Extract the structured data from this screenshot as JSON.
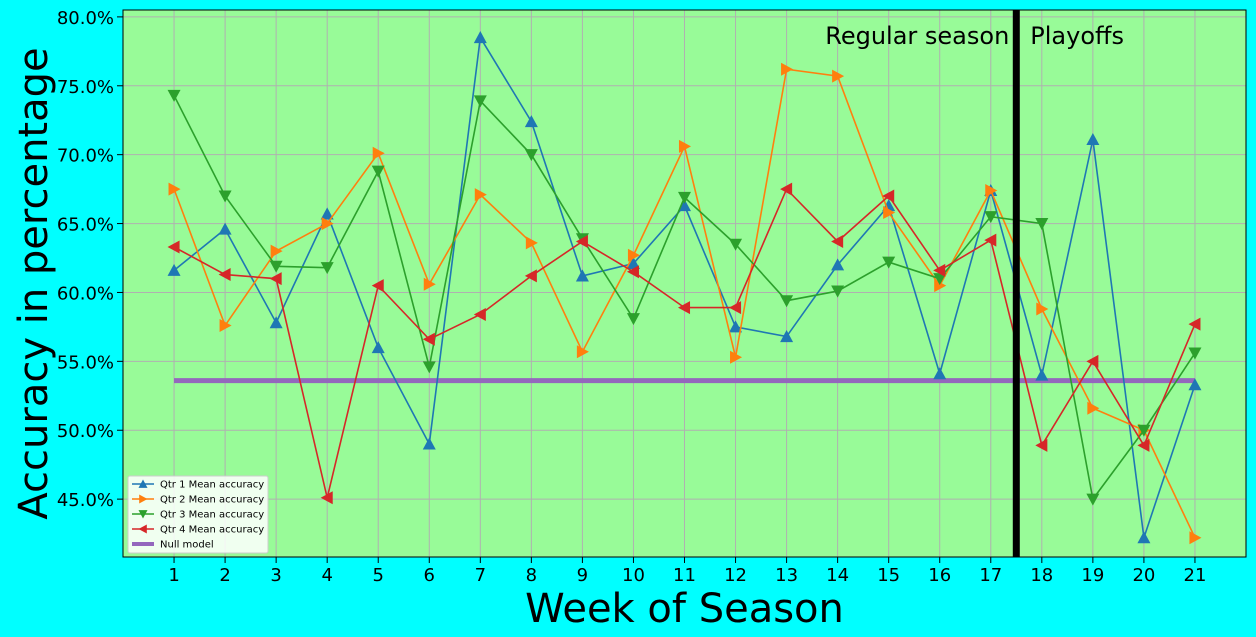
{
  "chart_data": {
    "type": "line",
    "xlabel": "Week of Season",
    "ylabel": "Accuracy in percentage",
    "x": [
      1,
      2,
      3,
      4,
      5,
      6,
      7,
      8,
      9,
      10,
      11,
      12,
      13,
      14,
      15,
      16,
      17,
      18,
      19,
      20,
      21
    ],
    "xlim": [
      0.0,
      22.0
    ],
    "ylim": [
      40.8,
      80.5
    ],
    "yticks": [
      45,
      50,
      55,
      60,
      65,
      70,
      75,
      80
    ],
    "ytick_labels": [
      "45.0%",
      "50.0%",
      "55.0%",
      "60.0%",
      "65.0%",
      "70.0%",
      "75.0%",
      "80.0%"
    ],
    "grid": true,
    "background": "#98fb98",
    "legend_position": "lower-left",
    "series": [
      {
        "name": "Qtr 1 Mean accuracy",
        "color": "#1f77b4",
        "marker": "triangle-up",
        "values": [
          61.6,
          64.6,
          57.8,
          65.7,
          56.0,
          49.0,
          78.5,
          72.4,
          61.2,
          62.1,
          66.3,
          57.5,
          56.8,
          62.0,
          66.3,
          54.1,
          67.4,
          54.0,
          71.1,
          42.2,
          53.3
        ]
      },
      {
        "name": "Qtr 2 Mean accuracy",
        "color": "#ff7f0e",
        "marker": "triangle-right",
        "values": [
          67.5,
          57.6,
          63.0,
          65.0,
          70.1,
          60.6,
          67.1,
          63.6,
          55.7,
          62.7,
          70.6,
          55.3,
          76.2,
          75.7,
          65.8,
          60.5,
          67.4,
          58.8,
          51.6,
          50.0,
          42.2
        ]
      },
      {
        "name": "Qtr 3 Mean accuracy",
        "color": "#2ca02c",
        "marker": "triangle-down",
        "values": [
          74.3,
          67.0,
          61.9,
          61.8,
          68.8,
          54.6,
          73.9,
          70.0,
          63.9,
          58.1,
          66.9,
          63.5,
          59.4,
          60.1,
          62.2,
          61.0,
          65.5,
          65.0,
          45.0,
          50.0,
          55.6
        ]
      },
      {
        "name": "Qtr 4 Mean accuracy",
        "color": "#d62728",
        "marker": "triangle-left",
        "values": [
          63.3,
          61.3,
          61.0,
          45.1,
          60.5,
          56.6,
          58.4,
          61.2,
          63.7,
          61.5,
          58.9,
          58.9,
          67.5,
          63.7,
          67.0,
          61.6,
          63.8,
          48.9,
          55.0,
          48.9,
          57.7
        ]
      },
      {
        "name": "Null model",
        "color": "#9467bd",
        "marker": "none",
        "values": [
          53.6,
          53.6,
          53.6,
          53.6,
          53.6,
          53.6,
          53.6,
          53.6,
          53.6,
          53.6,
          53.6,
          53.6,
          53.6,
          53.6,
          53.6,
          53.6,
          53.6,
          53.6,
          53.6,
          53.6,
          53.6
        ]
      }
    ],
    "divider": {
      "x": 17.5,
      "color": "#000000"
    },
    "annotations": [
      {
        "text": "Regular season",
        "anchor": "left-of-divider"
      },
      {
        "text": "Playoffs",
        "anchor": "right-of-divider"
      }
    ]
  }
}
